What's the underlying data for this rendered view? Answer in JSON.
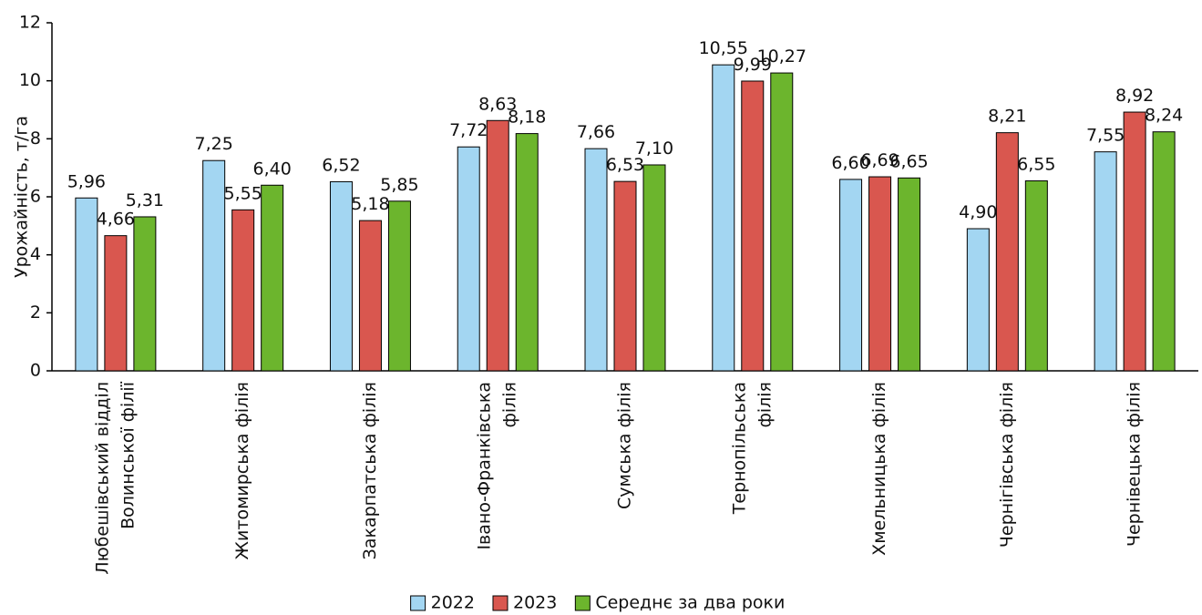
{
  "chart_data": {
    "type": "bar",
    "y_label": "Урожайність, т/га",
    "categories": [
      "Любешівський відділ Волинської філії",
      "Житомирська філія",
      "Закарпатська філія",
      "Івано-Франківська філія",
      "Сумська філія",
      "Тернопільська філія",
      "Хмельницька філія",
      "Чернігівська філія",
      "Чернівецька філія"
    ],
    "series": [
      {
        "name": "2022",
        "color": "#a3d6f2",
        "values": [
          5.96,
          7.25,
          6.52,
          7.72,
          7.66,
          10.55,
          6.6,
          4.9,
          7.55
        ],
        "value_labels": [
          "5,96",
          "7,25",
          "6,52",
          "7,72",
          "7,66",
          "10,55",
          "6,60",
          "4,90",
          "7,55"
        ]
      },
      {
        "name": "2023",
        "color": "#d9574f",
        "values": [
          4.66,
          5.55,
          5.18,
          8.63,
          6.53,
          9.99,
          6.69,
          8.21,
          8.92
        ],
        "value_labels": [
          "4,66",
          "5,55",
          "5,18",
          "8,63",
          "6,53",
          "9,99",
          "6,69",
          "8,21",
          "8,92"
        ]
      },
      {
        "name": "Середнє за два роки",
        "color": "#6cb52d",
        "values": [
          5.31,
          6.4,
          5.85,
          8.18,
          7.1,
          10.27,
          6.65,
          6.55,
          8.24
        ],
        "value_labels": [
          "5,31",
          "6,40",
          "5,85",
          "8,18",
          "7,10",
          "10,27",
          "6,65",
          "6,55",
          "8,24"
        ]
      }
    ],
    "ylim": [
      0,
      12
    ],
    "yticks": [
      0,
      2,
      4,
      6,
      8,
      10,
      12
    ],
    "legend": "bottom"
  }
}
